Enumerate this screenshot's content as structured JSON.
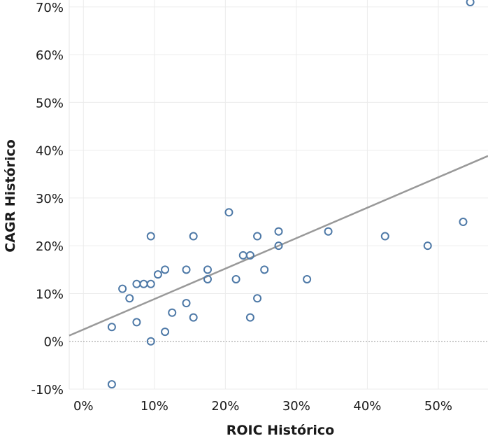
{
  "chart_data": {
    "type": "scatter",
    "title": "",
    "xlabel": "ROIC Histórico",
    "ylabel": "CAGR Histórico",
    "xlim": [
      -0.02,
      0.57
    ],
    "ylim": [
      -0.1,
      0.71
    ],
    "x_ticks": [
      0,
      0.1,
      0.2,
      0.3,
      0.4,
      0.5
    ],
    "y_ticks": [
      -0.1,
      0,
      0.1,
      0.2,
      0.3,
      0.4,
      0.5,
      0.6,
      0.7
    ],
    "x_tick_labels": [
      "0%",
      "10%",
      "20%",
      "30%",
      "40%",
      "50%"
    ],
    "y_tick_labels": [
      "-10%",
      "0%",
      "10%",
      "20%",
      "30%",
      "40%",
      "50%",
      "60%",
      "70%"
    ],
    "grid": true,
    "zero_line": "dotted",
    "trend_line": {
      "x": [
        -0.02,
        0.57
      ],
      "y": [
        0.012,
        0.388
      ]
    },
    "point_color": "#4e79a7",
    "trend_color": "#999999",
    "points": [
      [
        0.04,
        -0.09
      ],
      [
        0.04,
        0.03
      ],
      [
        0.055,
        0.11
      ],
      [
        0.065,
        0.09
      ],
      [
        0.075,
        0.12
      ],
      [
        0.075,
        0.04
      ],
      [
        0.085,
        0.12
      ],
      [
        0.095,
        0.12
      ],
      [
        0.095,
        0.22
      ],
      [
        0.095,
        0.0
      ],
      [
        0.105,
        0.14
      ],
      [
        0.115,
        0.15
      ],
      [
        0.115,
        0.02
      ],
      [
        0.125,
        0.06
      ],
      [
        0.145,
        0.15
      ],
      [
        0.145,
        0.08
      ],
      [
        0.155,
        0.22
      ],
      [
        0.155,
        0.05
      ],
      [
        0.175,
        0.15
      ],
      [
        0.175,
        0.13
      ],
      [
        0.205,
        0.27
      ],
      [
        0.215,
        0.13
      ],
      [
        0.225,
        0.18
      ],
      [
        0.235,
        0.18
      ],
      [
        0.235,
        0.05
      ],
      [
        0.245,
        0.22
      ],
      [
        0.245,
        0.09
      ],
      [
        0.255,
        0.15
      ],
      [
        0.275,
        0.23
      ],
      [
        0.275,
        0.2
      ],
      [
        0.315,
        0.13
      ],
      [
        0.345,
        0.23
      ],
      [
        0.425,
        0.22
      ],
      [
        0.485,
        0.2
      ],
      [
        0.535,
        0.25
      ],
      [
        0.545,
        0.71
      ]
    ]
  }
}
